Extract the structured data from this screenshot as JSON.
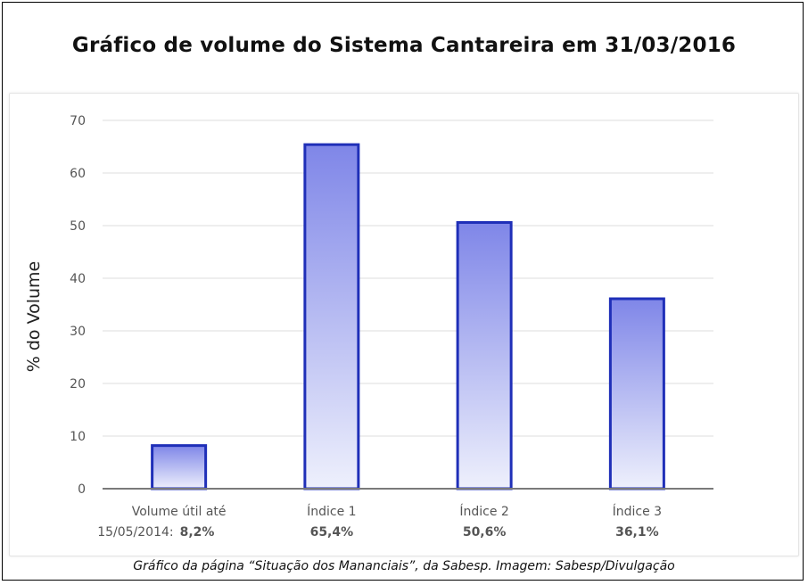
{
  "header": {
    "title": "Gráfico de volume do Sistema Cantareira em 31/03/2016"
  },
  "caption": "Gráfico da página “Situação dos Mananciais”, da Sabesp. Imagem: Sabesp/Divulgação",
  "chart_data": {
    "type": "bar",
    "title": "Gráfico de volume do Sistema Cantareira em 31/03/2016",
    "xlabel": "",
    "ylabel": "% do Volume",
    "ylim": [
      0,
      70
    ],
    "yticks": [
      "0",
      "10",
      "20",
      "30",
      "40",
      "50",
      "60",
      "70"
    ],
    "grid": true,
    "categories": [
      {
        "label_lines": [
          "Volume útil até",
          "15/05/2014:"
        ],
        "value_label": "8,2%"
      },
      {
        "label_lines": [
          "Índice 1"
        ],
        "value_label": "65,4%"
      },
      {
        "label_lines": [
          "Índice 2"
        ],
        "value_label": "50,6%"
      },
      {
        "label_lines": [
          "Índice 3"
        ],
        "value_label": "36,1%"
      }
    ],
    "values": [
      8.2,
      65.4,
      50.6,
      36.1
    ],
    "colors": {
      "bar_top": "#7f86e8",
      "bar_bottom": "#eef0fc",
      "bar_border": "#1f2fb8",
      "grid": "#dedede",
      "axis": "#7a7a7a"
    }
  }
}
